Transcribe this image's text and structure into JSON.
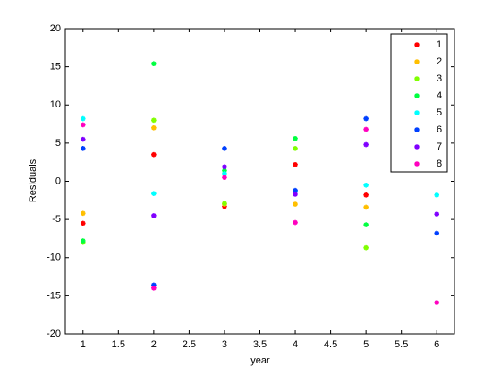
{
  "chart_data": {
    "type": "scatter",
    "x_label": "year",
    "y_label": "Residuals",
    "x": [
      1,
      2,
      3,
      4,
      5,
      6
    ],
    "series": [
      {
        "name": "1",
        "color": "#ff0000",
        "values": [
          -5.5,
          3.5,
          -3.3,
          2.2,
          -1.8,
          null
        ]
      },
      {
        "name": "2",
        "color": "#ffbf00",
        "values": [
          -4.2,
          7.0,
          -3.0,
          -3.0,
          -3.4,
          null
        ]
      },
      {
        "name": "3",
        "color": "#80ff00",
        "values": [
          -8.0,
          8.0,
          -2.9,
          4.3,
          -8.7,
          null
        ]
      },
      {
        "name": "4",
        "color": "#00ff40",
        "values": [
          -7.8,
          15.4,
          1.4,
          5.6,
          -5.7,
          null
        ]
      },
      {
        "name": "5",
        "color": "#00ffff",
        "values": [
          8.2,
          -1.6,
          1.0,
          -1.3,
          -0.5,
          -1.8
        ]
      },
      {
        "name": "6",
        "color": "#0040ff",
        "values": [
          4.3,
          -13.6,
          4.3,
          -1.2,
          8.2,
          -6.8
        ]
      },
      {
        "name": "7",
        "color": "#8000ff",
        "values": [
          5.5,
          -4.5,
          1.9,
          -1.7,
          4.8,
          -4.3
        ]
      },
      {
        "name": "8",
        "color": "#ff00bf",
        "values": [
          7.4,
          -14.0,
          0.5,
          -5.4,
          6.8,
          -15.9
        ]
      }
    ],
    "xlim": [
      0.75,
      6.25
    ],
    "xticks": [
      1,
      1.5,
      2,
      2.5,
      3,
      3.5,
      4,
      4.5,
      5,
      5.5,
      6
    ],
    "ylim": [
      -20,
      20
    ],
    "yticks": [
      -20,
      -15,
      -10,
      -5,
      0,
      5,
      10,
      15,
      20
    ],
    "legend": "upper right",
    "grid": false
  }
}
